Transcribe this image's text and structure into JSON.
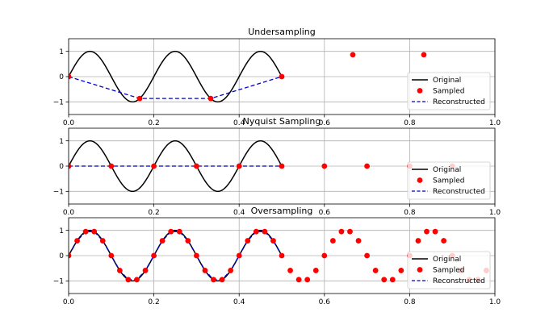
{
  "colors": {
    "original": "#000000",
    "sampled": "#ff0000",
    "reconstructed": "#0000cc",
    "grid": "#b0b0b0"
  },
  "legend": {
    "original": "Original",
    "sampled": "Sampled",
    "reconstructed": "Reconstructed",
    "placement": "right, slightly below top"
  },
  "chart_data": [
    {
      "type": "line",
      "title": "Undersampling",
      "xlim": [
        0,
        1
      ],
      "ylim": [
        -1.5,
        1.5
      ],
      "xticks": [
        "0.0",
        "0.2",
        "0.4",
        "0.6",
        "0.8",
        "1.0"
      ],
      "yticks": [
        "1",
        "0",
        "−1"
      ],
      "grid": true,
      "series": [
        {
          "name": "Original",
          "style": "solid",
          "function": "sin(2*pi*5*t)",
          "t_range": [
            0,
            0.5
          ]
        },
        {
          "name": "Sampled",
          "style": "markers",
          "x": [
            0,
            0.1667,
            0.3333,
            0.5,
            0.6667,
            0.8333
          ],
          "y": [
            0,
            -0.866,
            -0.866,
            0,
            0.866,
            0.866
          ]
        },
        {
          "name": "Reconstructed",
          "style": "dashed",
          "x": [
            0,
            0.1667,
            0.3333,
            0.5
          ],
          "y": [
            0,
            -0.866,
            -0.866,
            0
          ]
        }
      ]
    },
    {
      "type": "line",
      "title": "Nyquist Sampling",
      "xlim": [
        0,
        1
      ],
      "ylim": [
        -1.5,
        1.5
      ],
      "xticks": [
        "0.0",
        "0.2",
        "0.4",
        "0.6",
        "0.8",
        "1.0"
      ],
      "yticks": [
        "1",
        "0",
        "−1"
      ],
      "grid": true,
      "series": [
        {
          "name": "Original",
          "style": "solid",
          "function": "sin(2*pi*5*t)",
          "t_range": [
            0,
            0.5
          ]
        },
        {
          "name": "Sampled",
          "style": "markers",
          "x": [
            0,
            0.1,
            0.2,
            0.3,
            0.4,
            0.5,
            0.6,
            0.7,
            0.8,
            0.9
          ],
          "y": [
            0,
            0,
            0,
            0,
            0,
            0,
            0,
            0,
            0,
            0
          ]
        },
        {
          "name": "Reconstructed",
          "style": "dashed",
          "x": [
            0,
            0.1,
            0.2,
            0.3,
            0.4,
            0.5
          ],
          "y": [
            0,
            0,
            0,
            0,
            0,
            0
          ]
        }
      ]
    },
    {
      "type": "line",
      "title": "Oversampling",
      "xlim": [
        0,
        1
      ],
      "ylim": [
        -1.5,
        1.5
      ],
      "xticks": [
        "0.0",
        "0.2",
        "0.4",
        "0.6",
        "0.8",
        "1.0"
      ],
      "yticks": [
        "1",
        "0",
        "−1"
      ],
      "grid": true,
      "series": [
        {
          "name": "Original",
          "style": "solid",
          "function": "sin(2*pi*5*t)",
          "t_range": [
            0,
            0.5
          ]
        },
        {
          "name": "Sampled",
          "style": "markers",
          "x": [
            0,
            0.02,
            0.04,
            0.06,
            0.08,
            0.1,
            0.12,
            0.14,
            0.16,
            0.18,
            0.2,
            0.22,
            0.24,
            0.26,
            0.28,
            0.3,
            0.32,
            0.34,
            0.36,
            0.38,
            0.4,
            0.42,
            0.44,
            0.46,
            0.48,
            0.5,
            0.52,
            0.54,
            0.56,
            0.58,
            0.6,
            0.62,
            0.64,
            0.66,
            0.68,
            0.7,
            0.72,
            0.74,
            0.76,
            0.78,
            0.8,
            0.82,
            0.84,
            0.86,
            0.88,
            0.9,
            0.92,
            0.94,
            0.96,
            0.98
          ],
          "y": [
            0,
            0.588,
            0.951,
            0.951,
            0.588,
            0,
            -0.588,
            -0.951,
            -0.951,
            -0.588,
            0,
            0.588,
            0.951,
            0.951,
            0.588,
            0,
            -0.588,
            -0.951,
            -0.951,
            -0.588,
            0,
            0.588,
            0.951,
            0.951,
            0.588,
            0,
            -0.588,
            -0.951,
            -0.951,
            -0.588,
            0,
            0.588,
            0.951,
            0.951,
            0.588,
            0,
            -0.588,
            -0.951,
            -0.951,
            -0.588,
            0,
            0.588,
            0.951,
            0.951,
            0.588,
            0,
            -0.588,
            -0.951,
            -0.951,
            -0.588
          ]
        },
        {
          "name": "Reconstructed",
          "style": "dashed",
          "x": [
            0,
            0.02,
            0.04,
            0.06,
            0.08,
            0.1,
            0.12,
            0.14,
            0.16,
            0.18,
            0.2,
            0.22,
            0.24,
            0.26,
            0.28,
            0.3,
            0.32,
            0.34,
            0.36,
            0.38,
            0.4,
            0.42,
            0.44,
            0.46,
            0.48,
            0.5
          ],
          "y": [
            0,
            0.588,
            0.951,
            0.951,
            0.588,
            0,
            -0.588,
            -0.951,
            -0.951,
            -0.588,
            0,
            0.588,
            0.951,
            0.951,
            0.588,
            0,
            -0.588,
            -0.951,
            -0.951,
            -0.588,
            0,
            0.588,
            0.951,
            0.951,
            0.588,
            0
          ]
        }
      ]
    }
  ]
}
